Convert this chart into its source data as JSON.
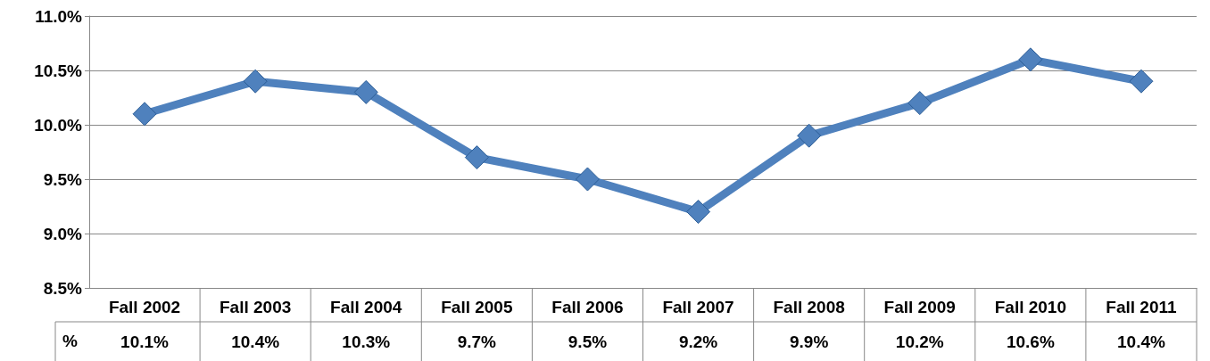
{
  "chart_data": {
    "type": "line",
    "categories": [
      "Fall 2002",
      "Fall 2003",
      "Fall 2004",
      "Fall 2005",
      "Fall 2006",
      "Fall 2007",
      "Fall 2008",
      "Fall 2009",
      "Fall 2010",
      "Fall 2011"
    ],
    "series": [
      {
        "name": "%",
        "color": "#4f81bd",
        "values": [
          10.1,
          10.4,
          10.3,
          9.7,
          9.5,
          9.2,
          9.9,
          10.2,
          10.6,
          10.4
        ],
        "value_labels": [
          "10.1%",
          "10.4%",
          "10.3%",
          "9.7%",
          "9.5%",
          "9.2%",
          "9.9%",
          "10.2%",
          "10.6%",
          "10.4%"
        ]
      }
    ],
    "ylim": [
      8.5,
      11.0
    ],
    "yticks": [
      {
        "value": 8.5,
        "label": "8.5%"
      },
      {
        "value": 9.0,
        "label": "9.0%"
      },
      {
        "value": 9.5,
        "label": "9.5%"
      },
      {
        "value": 10.0,
        "label": "10.0%"
      },
      {
        "value": 10.5,
        "label": "10.5%"
      },
      {
        "value": 11.0,
        "label": "11.0%"
      }
    ],
    "grid": "y",
    "marker": "diamond",
    "line_style": "solid"
  }
}
